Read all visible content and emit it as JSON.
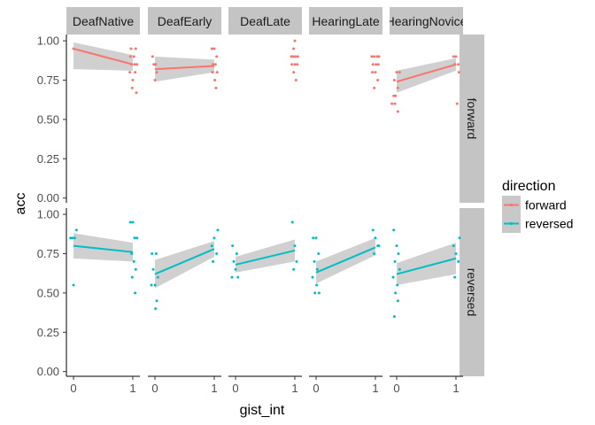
{
  "chart_data": {
    "type": "scatter",
    "xlabel": "gist_int",
    "ylabel": "acc",
    "columns": [
      "DeafNative",
      "DeafEarly",
      "DeafLate",
      "HearingLate",
      "HearingNovice"
    ],
    "rows": [
      "forward",
      "reversed"
    ],
    "x_ticks": [
      "0",
      "1"
    ],
    "y_ticks": [
      "0.00",
      "0.25",
      "0.50",
      "0.75",
      "1.00"
    ],
    "ylim": [
      -0.03,
      1.04
    ],
    "xlim": [
      -0.12,
      1.12
    ],
    "legend": {
      "title": "direction",
      "position": "right",
      "items": [
        {
          "label": "forward",
          "color": "#F8766D"
        },
        {
          "label": "reversed",
          "color": "#00BFC4"
        }
      ]
    },
    "colors": {
      "forward": "#F8766D",
      "reversed": "#00BFC4",
      "band": "#c8c8c8",
      "strip": "#c4c4c4"
    },
    "panels": [
      {
        "column": "DeafNative",
        "row": "forward",
        "fit": [
          0.95,
          0.85
        ],
        "band_low": [
          0.82,
          0.81
        ],
        "band_high": [
          0.99,
          0.91
        ],
        "fit_xrange": [
          0,
          1
        ],
        "points": [
          [
            0,
            0.95
          ],
          [
            0.96,
            0.9
          ],
          [
            1.02,
            0.9
          ],
          [
            1.05,
            0.95
          ],
          [
            0.98,
            0.85
          ],
          [
            1.03,
            0.85
          ],
          [
            1.07,
            0.85
          ],
          [
            0.95,
            0.8
          ],
          [
            1.0,
            0.75
          ],
          [
            1.04,
            0.8
          ],
          [
            0.99,
            0.7
          ],
          [
            1.06,
            0.67
          ],
          [
            0.97,
            0.95
          ]
        ]
      },
      {
        "column": "DeafEarly",
        "row": "forward",
        "fit": [
          0.82,
          0.84
        ],
        "band_low": [
          0.74,
          0.8
        ],
        "band_high": [
          0.9,
          0.88
        ],
        "fit_xrange": [
          0,
          1
        ],
        "points": [
          [
            -0.04,
            0.9
          ],
          [
            0.01,
            0.85
          ],
          [
            -0.02,
            0.85
          ],
          [
            0.03,
            0.8
          ],
          [
            0.0,
            0.75
          ],
          [
            0.96,
            0.95
          ],
          [
            1.0,
            0.95
          ],
          [
            1.04,
            0.9
          ],
          [
            0.98,
            0.85
          ],
          [
            1.02,
            0.85
          ],
          [
            1.05,
            0.8
          ],
          [
            0.97,
            0.8
          ],
          [
            1.01,
            0.75
          ],
          [
            1.03,
            0.7
          ]
        ]
      },
      {
        "column": "DeafLate",
        "row": "forward",
        "fit": [],
        "band_low": [],
        "band_high": [],
        "fit_xrange": [],
        "points": [
          [
            1.0,
            1.0
          ],
          [
            0.98,
            0.95
          ],
          [
            0.94,
            0.9
          ],
          [
            0.97,
            0.9
          ],
          [
            1.01,
            0.9
          ],
          [
            1.05,
            0.9
          ],
          [
            0.95,
            0.85
          ],
          [
            1.0,
            0.85
          ],
          [
            1.04,
            0.85
          ],
          [
            0.98,
            0.8
          ],
          [
            1.02,
            0.75
          ]
        ]
      },
      {
        "column": "HearingLate",
        "row": "forward",
        "fit": [],
        "band_low": [],
        "band_high": [],
        "fit_xrange": [],
        "points": [
          [
            0.94,
            0.9
          ],
          [
            0.98,
            0.9
          ],
          [
            1.03,
            0.9
          ],
          [
            1.06,
            0.9
          ],
          [
            0.96,
            0.85
          ],
          [
            1.01,
            0.85
          ],
          [
            1.05,
            0.85
          ],
          [
            0.95,
            0.8
          ],
          [
            1.0,
            0.8
          ],
          [
            1.04,
            0.75
          ],
          [
            0.98,
            0.7
          ]
        ]
      },
      {
        "column": "HearingNovice",
        "row": "forward",
        "fit": [
          0.74,
          0.85
        ],
        "band_low": [
          0.67,
          0.81
        ],
        "band_high": [
          0.81,
          0.89
        ],
        "fit_xrange": [
          0,
          1
        ],
        "points": [
          [
            -0.05,
            0.65
          ],
          [
            -0.08,
            0.6
          ],
          [
            -0.03,
            0.6
          ],
          [
            0.02,
            0.55
          ],
          [
            -0.04,
            0.75
          ],
          [
            0.0,
            0.8
          ],
          [
            0.05,
            0.8
          ],
          [
            0.02,
            0.7
          ],
          [
            -0.02,
            0.65
          ],
          [
            0.96,
            0.9
          ],
          [
            1.0,
            0.9
          ],
          [
            1.04,
            0.85
          ],
          [
            0.98,
            0.85
          ],
          [
            1.05,
            0.8
          ],
          [
            1.02,
            0.6
          ]
        ]
      },
      {
        "column": "DeafNative",
        "row": "reversed",
        "fit": [
          0.8,
          0.76
        ],
        "band_low": [
          0.72,
          0.7
        ],
        "band_high": [
          0.88,
          0.82
        ],
        "fit_xrange": [
          0,
          1
        ],
        "points": [
          [
            -0.05,
            0.85
          ],
          [
            -0.02,
            0.85
          ],
          [
            0.02,
            0.85
          ],
          [
            0.05,
            0.9
          ],
          [
            0.0,
            0.55
          ],
          [
            0.96,
            0.95
          ],
          [
            1.0,
            0.95
          ],
          [
            1.03,
            0.85
          ],
          [
            1.07,
            0.85
          ],
          [
            0.98,
            0.75
          ],
          [
            1.02,
            0.7
          ],
          [
            1.05,
            0.65
          ],
          [
            0.99,
            0.6
          ],
          [
            1.04,
            0.5
          ]
        ]
      },
      {
        "column": "DeafEarly",
        "row": "reversed",
        "fit": [
          0.62,
          0.78
        ],
        "band_low": [
          0.53,
          0.73
        ],
        "band_high": [
          0.71,
          0.83
        ],
        "fit_xrange": [
          0,
          1
        ],
        "points": [
          [
            -0.05,
            0.75
          ],
          [
            0.02,
            0.75
          ],
          [
            -0.03,
            0.65
          ],
          [
            0.05,
            0.6
          ],
          [
            0.0,
            0.55
          ],
          [
            -0.06,
            0.55
          ],
          [
            0.03,
            0.45
          ],
          [
            0.01,
            0.4
          ],
          [
            0.96,
            0.8
          ],
          [
            1.0,
            0.85
          ],
          [
            1.04,
            0.75
          ],
          [
            1.06,
            0.9
          ],
          [
            0.98,
            0.7
          ]
        ]
      },
      {
        "column": "DeafLate",
        "row": "reversed",
        "fit": [
          0.68,
          0.77
        ],
        "band_low": [
          0.63,
          0.7
        ],
        "band_high": [
          0.73,
          0.84
        ],
        "fit_xrange": [
          0,
          1
        ],
        "points": [
          [
            -0.05,
            0.8
          ],
          [
            0.02,
            0.75
          ],
          [
            -0.03,
            0.7
          ],
          [
            0.0,
            0.65
          ],
          [
            0.04,
            0.6
          ],
          [
            -0.06,
            0.6
          ],
          [
            0.96,
            0.95
          ],
          [
            1.0,
            0.8
          ],
          [
            1.03,
            0.7
          ],
          [
            0.98,
            0.65
          ]
        ]
      },
      {
        "column": "HearingLate",
        "row": "reversed",
        "fit": [
          0.63,
          0.79
        ],
        "band_low": [
          0.56,
          0.74
        ],
        "band_high": [
          0.7,
          0.85
        ],
        "fit_xrange": [
          0,
          1
        ],
        "points": [
          [
            -0.05,
            0.85
          ],
          [
            0.0,
            0.85
          ],
          [
            0.04,
            0.75
          ],
          [
            -0.03,
            0.7
          ],
          [
            0.02,
            0.65
          ],
          [
            -0.06,
            0.6
          ],
          [
            0.01,
            0.55
          ],
          [
            0.05,
            0.5
          ],
          [
            -0.02,
            0.5
          ],
          [
            0.96,
            0.9
          ],
          [
            1.0,
            0.85
          ],
          [
            1.04,
            0.8
          ],
          [
            0.98,
            0.75
          ],
          [
            1.06,
            0.8
          ]
        ]
      },
      {
        "column": "HearingNovice",
        "row": "reversed",
        "fit": [
          0.62,
          0.72
        ],
        "band_low": [
          0.55,
          0.62
        ],
        "band_high": [
          0.69,
          0.82
        ],
        "fit_xrange": [
          0,
          1
        ],
        "points": [
          [
            -0.05,
            0.9
          ],
          [
            0.0,
            0.8
          ],
          [
            0.03,
            0.75
          ],
          [
            -0.03,
            0.7
          ],
          [
            0.05,
            0.65
          ],
          [
            -0.06,
            0.6
          ],
          [
            0.01,
            0.55
          ],
          [
            -0.02,
            0.5
          ],
          [
            0.02,
            0.45
          ],
          [
            -0.04,
            0.35
          ],
          [
            0.96,
            0.8
          ],
          [
            1.0,
            0.75
          ],
          [
            1.04,
            0.7
          ],
          [
            1.06,
            0.85
          ],
          [
            0.98,
            0.6
          ]
        ]
      }
    ]
  }
}
